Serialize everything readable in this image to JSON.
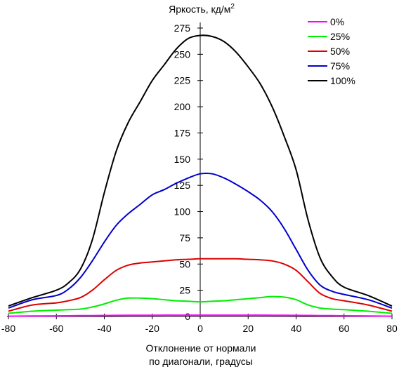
{
  "chart_data": {
    "type": "line",
    "ylabel": "Яркость, кд/м",
    "ylabel_sup": "2",
    "xlabel_lines": [
      "Отклонение от нормали",
      "по диагонали, градусы"
    ],
    "xlim": [
      -80,
      80
    ],
    "ylim": [
      0,
      275
    ],
    "x_ticks": [
      -80,
      -60,
      -40,
      -20,
      0,
      20,
      40,
      60,
      80
    ],
    "y_ticks": [
      0,
      25,
      50,
      75,
      100,
      125,
      150,
      175,
      200,
      225,
      250,
      275
    ],
    "grid": false,
    "legend_position": "top-right",
    "x": [
      -80,
      -70,
      -60,
      -55,
      -50,
      -45,
      -40,
      -35,
      -30,
      -25,
      -20,
      -15,
      -10,
      -5,
      0,
      5,
      10,
      15,
      20,
      25,
      30,
      35,
      40,
      45,
      50,
      55,
      60,
      70,
      80
    ],
    "series": [
      {
        "name": "0%",
        "color": "#ff00ff",
        "values": [
          0.3,
          0.5,
          0.6,
          0.7,
          0.8,
          0.9,
          1.0,
          1.1,
          1.2,
          1.2,
          1.2,
          1.3,
          1.3,
          1.3,
          1.3,
          1.3,
          1.3,
          1.3,
          1.3,
          1.3,
          1.2,
          1.2,
          1.1,
          1.0,
          0.9,
          0.8,
          0.7,
          0.5,
          0.3
        ]
      },
      {
        "name": "25%",
        "color": "#00ee00",
        "values": [
          3,
          5,
          6,
          6.5,
          7,
          9,
          12,
          15.5,
          17.5,
          17.5,
          17,
          16,
          15,
          14.5,
          14,
          14.5,
          15,
          16,
          17,
          18,
          19,
          18.5,
          16,
          11,
          8,
          7,
          6.5,
          5,
          3
        ]
      },
      {
        "name": "50%",
        "color": "#dd0000",
        "values": [
          5,
          11,
          13,
          15,
          18,
          25,
          35,
          44,
          49,
          51,
          52,
          53,
          54,
          54.5,
          55,
          55,
          55,
          55,
          54.5,
          54,
          53,
          50,
          44,
          33,
          22,
          17,
          15,
          11,
          5
        ]
      },
      {
        "name": "75%",
        "color": "#0000cc",
        "values": [
          8,
          16,
          20,
          26,
          37,
          53,
          71,
          87,
          98,
          107,
          116,
          121,
          127,
          132,
          136,
          136,
          132,
          126,
          119,
          111,
          100,
          84,
          64,
          44,
          30,
          24,
          21,
          16,
          8
        ]
      },
      {
        "name": "100%",
        "color": "#000000",
        "values": [
          10,
          18,
          25,
          32,
          45,
          73,
          118,
          158,
          185,
          205,
          225,
          240,
          255,
          265,
          268,
          267,
          262,
          252,
          238,
          222,
          200,
          172,
          140,
          92,
          56,
          38,
          28,
          20,
          10
        ]
      }
    ]
  }
}
